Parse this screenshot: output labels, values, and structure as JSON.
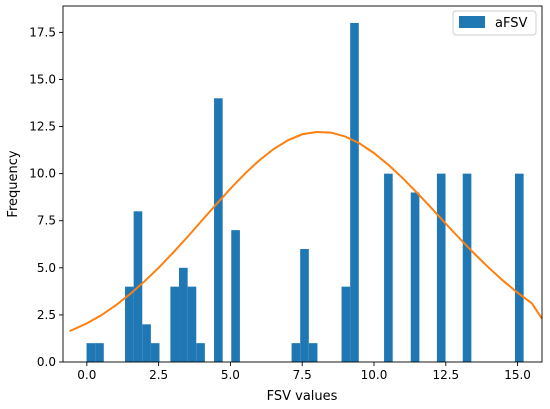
{
  "chart_data": {
    "type": "bar",
    "title": "",
    "xlabel": "FSV values",
    "ylabel": "Frequency",
    "xlim": [
      -0.83,
      15.85
    ],
    "ylim": [
      0,
      18.9
    ],
    "xticks": [
      0.0,
      2.5,
      5.0,
      7.5,
      10.0,
      12.5,
      15.0
    ],
    "xtick_labels": [
      "0.0",
      "2.5",
      "5.0",
      "7.5",
      "10.0",
      "12.5",
      "15.0"
    ],
    "yticks": [
      0.0,
      2.5,
      5.0,
      7.5,
      10.0,
      12.5,
      15.0,
      17.5
    ],
    "ytick_labels": [
      "0.0",
      "2.5",
      "5.0",
      "7.5",
      "10.0",
      "12.5",
      "15.0",
      "17.5"
    ],
    "grid": false,
    "legend": {
      "position": "top-right",
      "entries": [
        "aFSV"
      ]
    },
    "series": [
      {
        "name": "aFSV",
        "kind": "histogram",
        "color": "#1f77b4",
        "bin_width": 0.3,
        "bins": [
          {
            "x": 0.14,
            "value": 1
          },
          {
            "x": 0.44,
            "value": 1
          },
          {
            "x": 1.48,
            "value": 4
          },
          {
            "x": 1.78,
            "value": 8
          },
          {
            "x": 2.08,
            "value": 2
          },
          {
            "x": 2.38,
            "value": 1
          },
          {
            "x": 3.06,
            "value": 4
          },
          {
            "x": 3.36,
            "value": 5
          },
          {
            "x": 3.66,
            "value": 4
          },
          {
            "x": 3.96,
            "value": 1
          },
          {
            "x": 4.58,
            "value": 14
          },
          {
            "x": 5.18,
            "value": 7
          },
          {
            "x": 7.28,
            "value": 1
          },
          {
            "x": 7.58,
            "value": 6
          },
          {
            "x": 7.88,
            "value": 1
          },
          {
            "x": 9.02,
            "value": 4
          },
          {
            "x": 9.32,
            "value": 18
          },
          {
            "x": 10.5,
            "value": 10
          },
          {
            "x": 11.43,
            "value": 9
          },
          {
            "x": 12.34,
            "value": 10
          },
          {
            "x": 13.24,
            "value": 10
          },
          {
            "x": 15.06,
            "value": 10
          }
        ]
      },
      {
        "kind": "curve",
        "color": "#ff7f0e",
        "x": [
          -0.6,
          0.0,
          0.5,
          1.0,
          1.5,
          2.0,
          2.5,
          3.0,
          3.5,
          4.0,
          4.5,
          5.0,
          5.5,
          6.0,
          6.5,
          7.0,
          7.5,
          8.0,
          8.5,
          9.0,
          9.5,
          10.0,
          10.5,
          11.0,
          11.5,
          12.0,
          12.5,
          13.0,
          13.5,
          14.0,
          14.5,
          15.0,
          15.5,
          15.85
        ],
        "y": [
          1.64,
          2.05,
          2.48,
          3.0,
          3.6,
          4.27,
          5.0,
          5.8,
          6.63,
          7.5,
          8.36,
          9.2,
          9.99,
          10.7,
          11.3,
          11.77,
          12.09,
          12.21,
          12.18,
          11.97,
          11.6,
          11.09,
          10.47,
          9.76,
          8.98,
          8.17,
          7.34,
          6.53,
          5.74,
          5.0,
          4.31,
          3.68,
          3.11,
          2.3
        ]
      }
    ]
  }
}
